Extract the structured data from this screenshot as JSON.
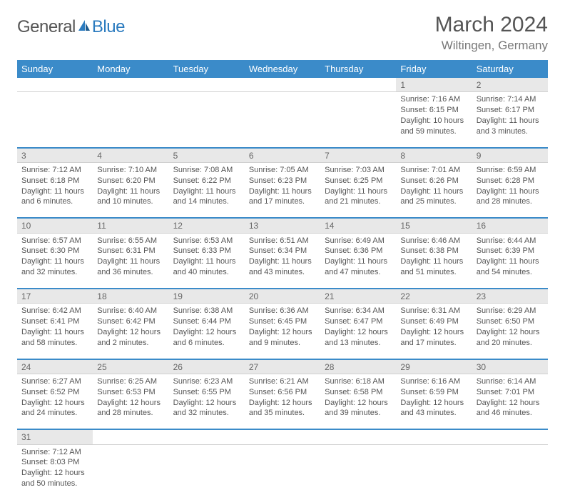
{
  "logo": {
    "part1": "General",
    "part2": "Blue"
  },
  "title": "March 2024",
  "location": "Wiltingen, Germany",
  "header_color": "#3b8bc9",
  "daynum_bg": "#e8e8e8",
  "row_divider_color": "#3b8bc9",
  "days_of_week": [
    "Sunday",
    "Monday",
    "Tuesday",
    "Wednesday",
    "Thursday",
    "Friday",
    "Saturday"
  ],
  "weeks": [
    {
      "nums": [
        "",
        "",
        "",
        "",
        "",
        "1",
        "2"
      ],
      "cells": [
        null,
        null,
        null,
        null,
        null,
        {
          "sunrise": "7:16 AM",
          "sunset": "6:15 PM",
          "daylight": "10 hours and 59 minutes."
        },
        {
          "sunrise": "7:14 AM",
          "sunset": "6:17 PM",
          "daylight": "11 hours and 3 minutes."
        }
      ]
    },
    {
      "nums": [
        "3",
        "4",
        "5",
        "6",
        "7",
        "8",
        "9"
      ],
      "cells": [
        {
          "sunrise": "7:12 AM",
          "sunset": "6:18 PM",
          "daylight": "11 hours and 6 minutes."
        },
        {
          "sunrise": "7:10 AM",
          "sunset": "6:20 PM",
          "daylight": "11 hours and 10 minutes."
        },
        {
          "sunrise": "7:08 AM",
          "sunset": "6:22 PM",
          "daylight": "11 hours and 14 minutes."
        },
        {
          "sunrise": "7:05 AM",
          "sunset": "6:23 PM",
          "daylight": "11 hours and 17 minutes."
        },
        {
          "sunrise": "7:03 AM",
          "sunset": "6:25 PM",
          "daylight": "11 hours and 21 minutes."
        },
        {
          "sunrise": "7:01 AM",
          "sunset": "6:26 PM",
          "daylight": "11 hours and 25 minutes."
        },
        {
          "sunrise": "6:59 AM",
          "sunset": "6:28 PM",
          "daylight": "11 hours and 28 minutes."
        }
      ]
    },
    {
      "nums": [
        "10",
        "11",
        "12",
        "13",
        "14",
        "15",
        "16"
      ],
      "cells": [
        {
          "sunrise": "6:57 AM",
          "sunset": "6:30 PM",
          "daylight": "11 hours and 32 minutes."
        },
        {
          "sunrise": "6:55 AM",
          "sunset": "6:31 PM",
          "daylight": "11 hours and 36 minutes."
        },
        {
          "sunrise": "6:53 AM",
          "sunset": "6:33 PM",
          "daylight": "11 hours and 40 minutes."
        },
        {
          "sunrise": "6:51 AM",
          "sunset": "6:34 PM",
          "daylight": "11 hours and 43 minutes."
        },
        {
          "sunrise": "6:49 AM",
          "sunset": "6:36 PM",
          "daylight": "11 hours and 47 minutes."
        },
        {
          "sunrise": "6:46 AM",
          "sunset": "6:38 PM",
          "daylight": "11 hours and 51 minutes."
        },
        {
          "sunrise": "6:44 AM",
          "sunset": "6:39 PM",
          "daylight": "11 hours and 54 minutes."
        }
      ]
    },
    {
      "nums": [
        "17",
        "18",
        "19",
        "20",
        "21",
        "22",
        "23"
      ],
      "cells": [
        {
          "sunrise": "6:42 AM",
          "sunset": "6:41 PM",
          "daylight": "11 hours and 58 minutes."
        },
        {
          "sunrise": "6:40 AM",
          "sunset": "6:42 PM",
          "daylight": "12 hours and 2 minutes."
        },
        {
          "sunrise": "6:38 AM",
          "sunset": "6:44 PM",
          "daylight": "12 hours and 6 minutes."
        },
        {
          "sunrise": "6:36 AM",
          "sunset": "6:45 PM",
          "daylight": "12 hours and 9 minutes."
        },
        {
          "sunrise": "6:34 AM",
          "sunset": "6:47 PM",
          "daylight": "12 hours and 13 minutes."
        },
        {
          "sunrise": "6:31 AM",
          "sunset": "6:49 PM",
          "daylight": "12 hours and 17 minutes."
        },
        {
          "sunrise": "6:29 AM",
          "sunset": "6:50 PM",
          "daylight": "12 hours and 20 minutes."
        }
      ]
    },
    {
      "nums": [
        "24",
        "25",
        "26",
        "27",
        "28",
        "29",
        "30"
      ],
      "cells": [
        {
          "sunrise": "6:27 AM",
          "sunset": "6:52 PM",
          "daylight": "12 hours and 24 minutes."
        },
        {
          "sunrise": "6:25 AM",
          "sunset": "6:53 PM",
          "daylight": "12 hours and 28 minutes."
        },
        {
          "sunrise": "6:23 AM",
          "sunset": "6:55 PM",
          "daylight": "12 hours and 32 minutes."
        },
        {
          "sunrise": "6:21 AM",
          "sunset": "6:56 PM",
          "daylight": "12 hours and 35 minutes."
        },
        {
          "sunrise": "6:18 AM",
          "sunset": "6:58 PM",
          "daylight": "12 hours and 39 minutes."
        },
        {
          "sunrise": "6:16 AM",
          "sunset": "6:59 PM",
          "daylight": "12 hours and 43 minutes."
        },
        {
          "sunrise": "6:14 AM",
          "sunset": "7:01 PM",
          "daylight": "12 hours and 46 minutes."
        }
      ]
    },
    {
      "nums": [
        "31",
        "",
        "",
        "",
        "",
        "",
        ""
      ],
      "cells": [
        {
          "sunrise": "7:12 AM",
          "sunset": "8:03 PM",
          "daylight": "12 hours and 50 minutes."
        },
        null,
        null,
        null,
        null,
        null,
        null
      ]
    }
  ],
  "labels": {
    "sunrise": "Sunrise:",
    "sunset": "Sunset:",
    "daylight": "Daylight:"
  }
}
